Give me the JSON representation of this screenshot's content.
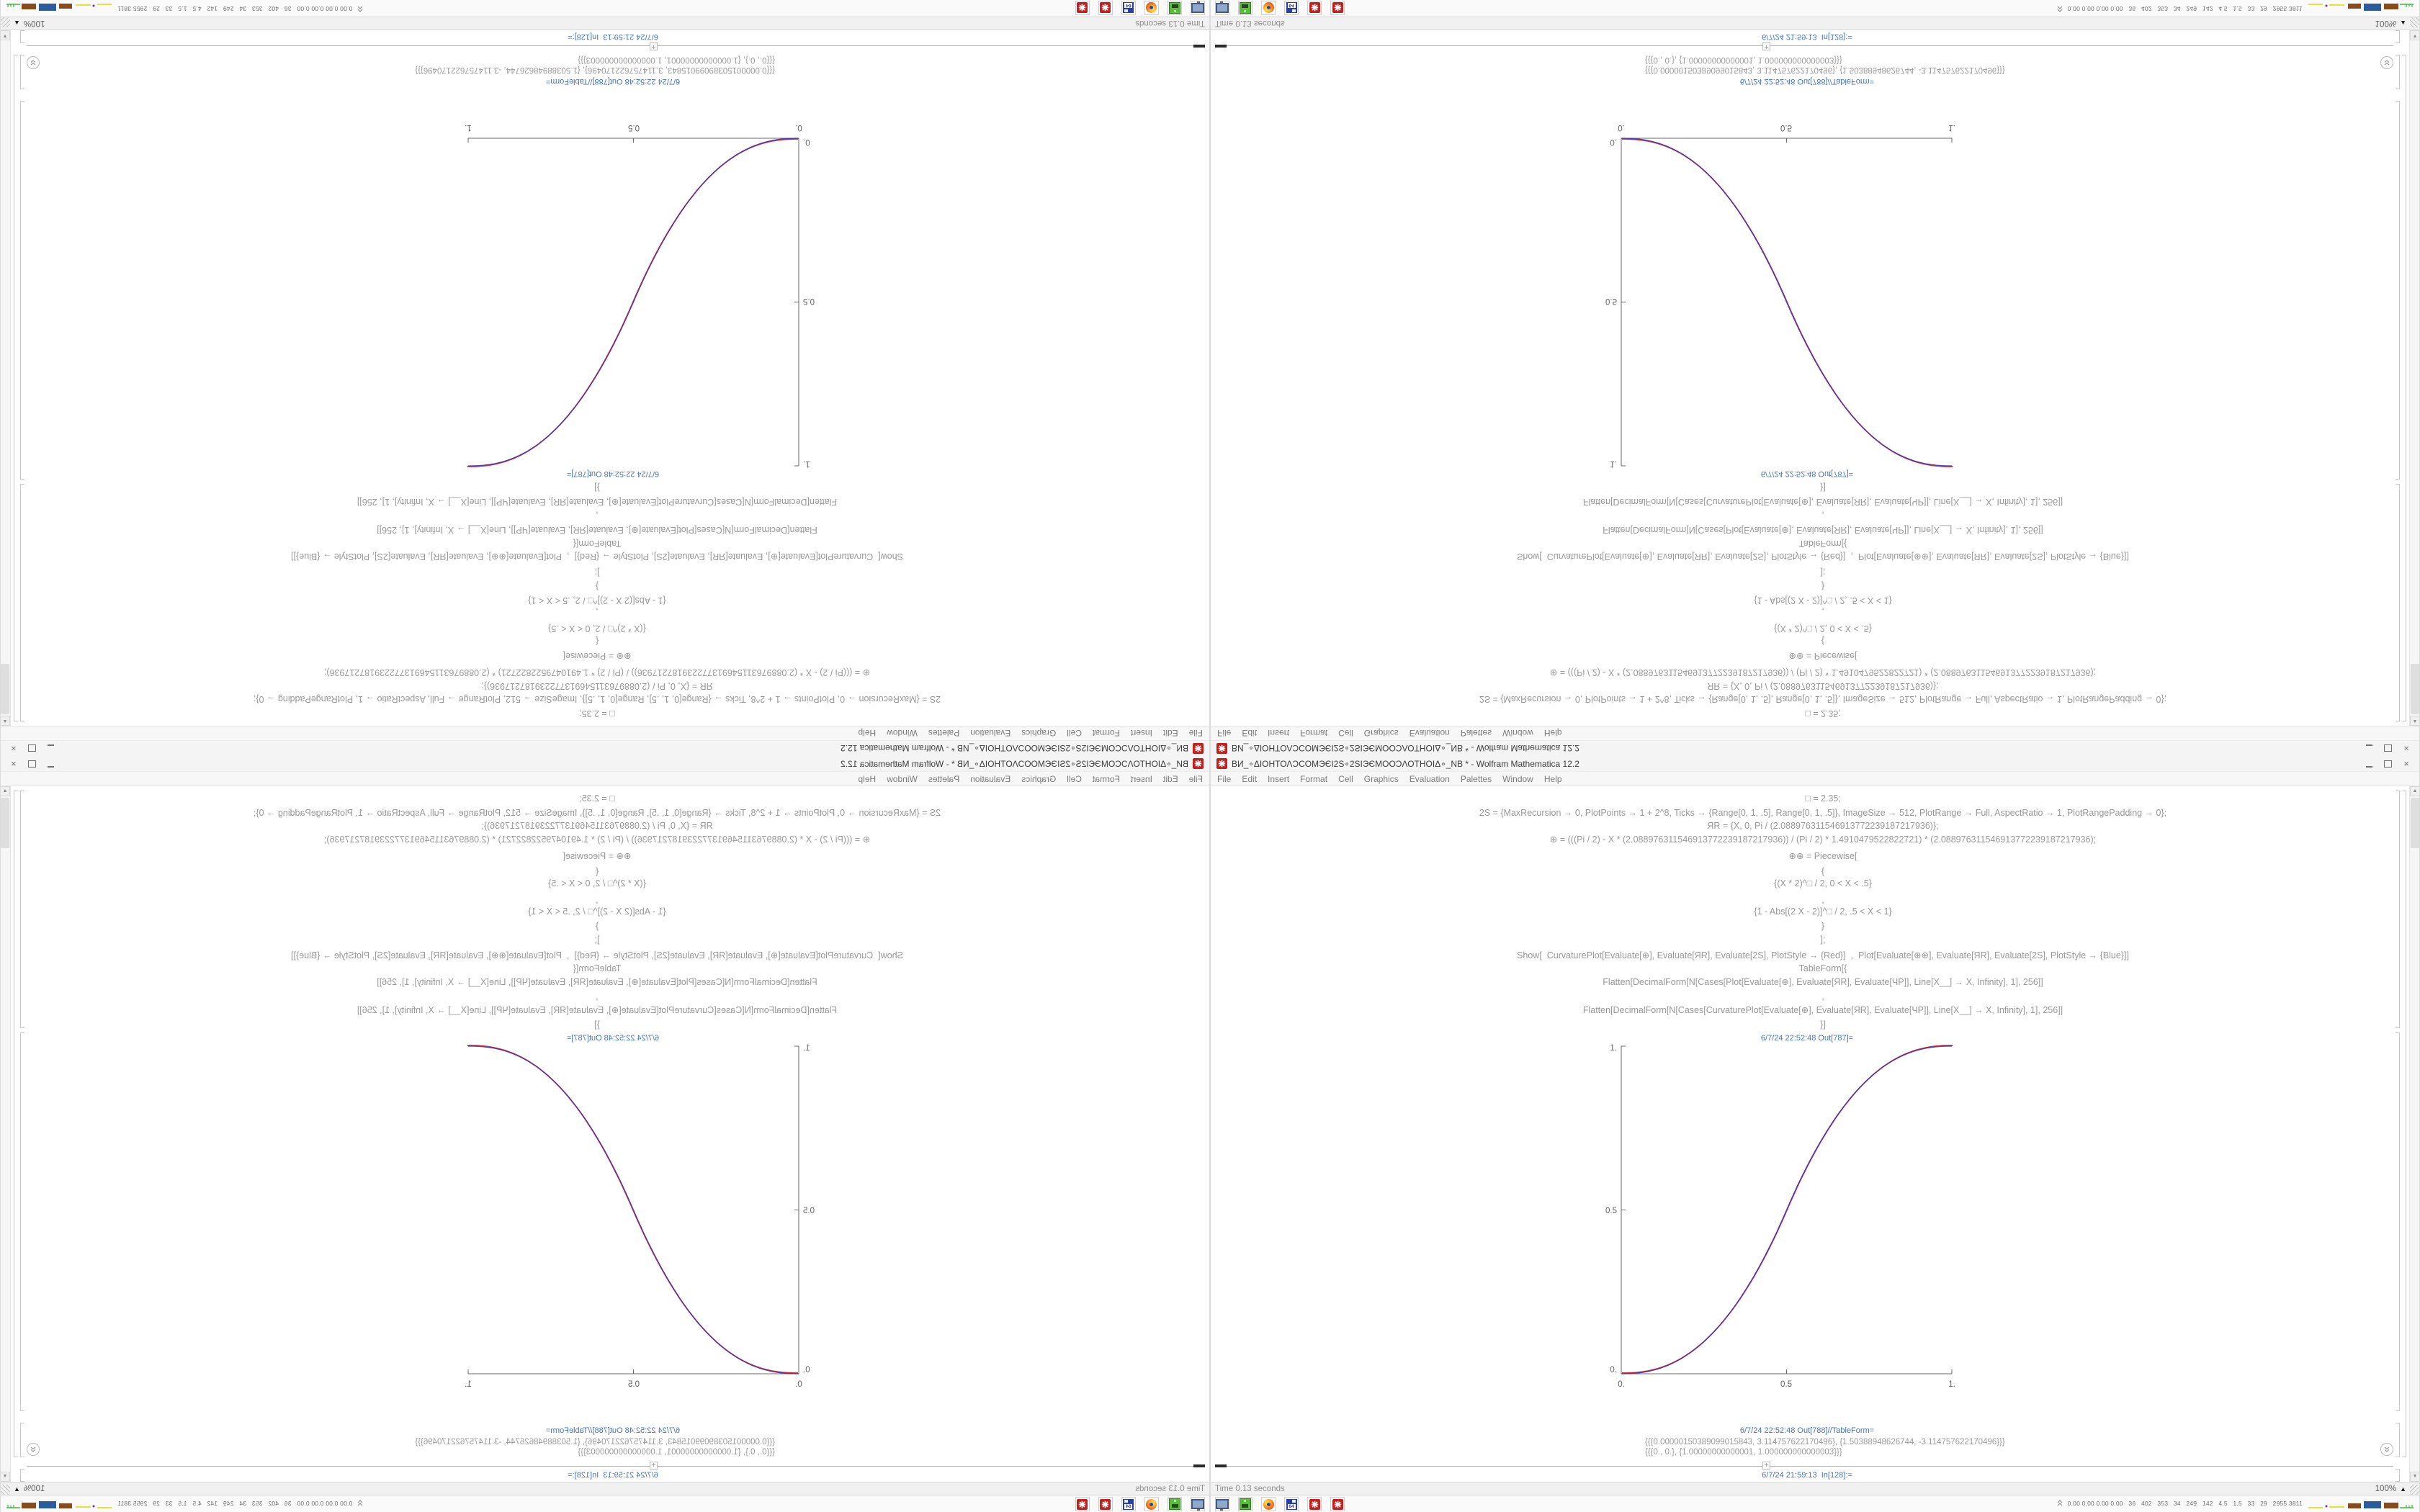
{
  "screen": {
    "window": {
      "title": "ВИ_∘ΔΙΟΗΤΟΛƆCΟΜЭЄΙ2S∘2SΙЭЄΜΟΟƆΛΟΤΗΟΙΔ∘_NB * - Wolfram Mathematica 12.2",
      "menu": [
        "File",
        "Edit",
        "Insert",
        "Format",
        "Cell",
        "Graphics",
        "Evaluation",
        "Palettes",
        "Window",
        "Help"
      ],
      "controls": {
        "close_glyph": "×"
      }
    },
    "notebook": {
      "code_lines": [
        "□ = 2.35;",
        "2S = {MaxRecursion → 0, PlotPoints → 1 + 2^8, Ticks → {Range[0, 1, .5], Range[0, 1, .5]}, ImageSize → 512, PlotRange → Full, AspectRatio → 1, PlotRangePadding → 0};",
        "ЯR = {X, 0, Pi / (2.088976311546913772239187217936)};",
        "⊕ = (((Pi / 2) - X * (2.088976311546913772239187217936)) / (Pi / 2) * 1.4910479522822721) * (2.088976311546913772239187217936);",
        "⊕⊕ = Piecewise[",
        "{",
        "{(X * 2)^□ / 2, 0 < X < .5}",
        ",",
        "{1 - Abs[(2 X - 2)]^□ / 2, .5 < X < 1}",
        "}",
        "];",
        "Show[  CurvaturePlot[Evaluate[⊕], Evaluate[ЯR], Evaluate[2S], PlotStyle → {Red}]  ,  Plot[Evaluate[⊕⊕], Evaluate[ЯR], Evaluate[2S], PlotStyle → {Blue}]]",
        "TableForm[{",
        "Flatten[DecimalForm[N[Cases[Plot[Evaluate[⊕], Evaluate[ЯR], Evaluate[ЧP]], Line[X__] → X, Infinity], 1], 256]]",
        ",",
        "Flatten[DecimalForm[N[Cases[CurvaturePlot[Evaluate[⊕], Evaluate[ЯR], Evaluate[ЧP]], Line[X__] → X, Infinity], 1], 256]]",
        "}]"
      ],
      "out1_label": "6/7/24 22:52:48 Out[787]=",
      "out2_label": "6/7/24 22:52:48 Out[788]//TableForm=",
      "out2_line1": "{{{0.00000150389099015843, 3.114757622170496}, {1.50388948626744, -3.114757622170496}}}",
      "out2_line2": "{{{0., 0.}, {1.00000000000001, 1.000000000000003}}}",
      "in_label": "6/7/24 21:59:13  In[128]:="
    },
    "statusbar": {
      "left_text": "Time 0.13 seconds",
      "zoom_level": "100%"
    },
    "taskbar": {
      "icons": [
        "computer",
        "package-manager",
        "firefox",
        "floppy-64",
        "mathematica",
        "mathematica"
      ],
      "floppy_label": "64",
      "tray_values": "0.00 0.00 0.00 0.00   36   402   353   34   249   142   4.5   1.5   33   29   2955 3811"
    }
  },
  "chart_data": {
    "type": "line",
    "title": "",
    "xlabel": "",
    "ylabel": "",
    "xlim": [
      0,
      1
    ],
    "ylim": [
      0,
      1
    ],
    "xticks": [
      0,
      0.5,
      1
    ],
    "yticks": [
      0,
      0.5,
      1
    ],
    "xtick_labels": [
      "0.",
      "0.5",
      "1."
    ],
    "ytick_labels": [
      "0.",
      "0.5",
      "1."
    ],
    "grid": false,
    "axes_style": "left-bottom",
    "exponent": 2.35,
    "x": [
      0,
      0.1,
      0.2,
      0.3,
      0.4,
      0.5,
      0.6,
      0.7,
      0.8,
      0.9,
      1.0
    ],
    "series": [
      {
        "name": "CurvaturePlot ⊕ (Red)",
        "color": "#cf2a2a",
        "values": [
          0,
          0.011,
          0.049,
          0.148,
          0.296,
          0.5,
          0.704,
          0.852,
          0.951,
          0.989,
          1.0
        ]
      },
      {
        "name": "Plot ⊕⊕ (Blue)",
        "color": "#3a35c9",
        "values": [
          0,
          0.011,
          0.049,
          0.148,
          0.296,
          0.5,
          0.704,
          0.852,
          0.951,
          0.989,
          1.0
        ]
      }
    ]
  }
}
